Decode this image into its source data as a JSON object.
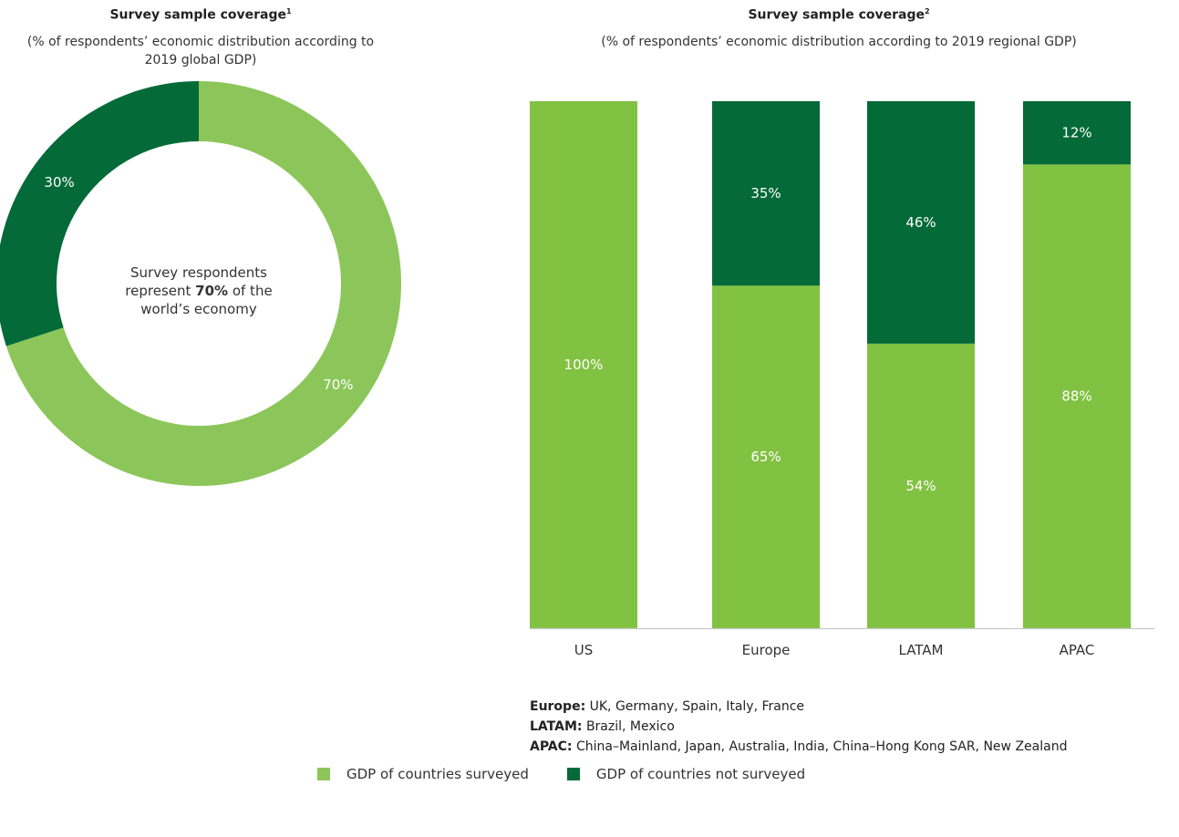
{
  "colors": {
    "surveyed_donut": "#8cc65a",
    "surveyed_bar": "#82c242",
    "not_surveyed": "#046a38",
    "axis": "#c8c8c8",
    "label_on_dark": "#ffffff"
  },
  "left_chart": {
    "title": "Survey sample coverage",
    "title_sup": "1",
    "subtitle": "(% of respondents’ economic distribution according to 2019 global GDP)",
    "center_text_1": "Survey respondents represent ",
    "center_text_bold": "70%",
    "center_text_2": " of the world’s economy"
  },
  "right_chart": {
    "title": "Survey sample coverage",
    "title_sup": "2",
    "subtitle": "(% of respondents’ economic distribution according to 2019 regional GDP)"
  },
  "chart_data": [
    {
      "type": "pie",
      "donut": true,
      "slices": [
        {
          "label": "70%",
          "value": 70,
          "series": "GDP of countries surveyed"
        },
        {
          "label": "30%",
          "value": 30,
          "series": "GDP of countries not surveyed"
        }
      ]
    },
    {
      "type": "bar",
      "stacked": true,
      "categories": [
        "US",
        "Europe",
        "LATAM",
        "APAC"
      ],
      "ylim": [
        0,
        100
      ],
      "series": [
        {
          "name": "GDP of countries surveyed",
          "values": [
            100,
            65,
            54,
            88
          ],
          "labels": [
            "100%",
            "65%",
            "54%",
            "88%"
          ]
        },
        {
          "name": "GDP of countries not surveyed",
          "values": [
            0,
            35,
            46,
            12
          ],
          "labels": [
            "",
            "35%",
            "46%",
            "12%"
          ]
        }
      ]
    }
  ],
  "notes": [
    {
      "key": "Europe:",
      "text": " UK, Germany, Spain, Italy, France"
    },
    {
      "key": "LATAM:",
      "text": " Brazil, Mexico"
    },
    {
      "key": "APAC:",
      "text": " China–Mainland, Japan, Australia, India, China–Hong Kong SAR, New Zealand"
    }
  ],
  "legend": [
    {
      "label": "GDP of countries surveyed"
    },
    {
      "label": "GDP of countries not surveyed"
    }
  ]
}
